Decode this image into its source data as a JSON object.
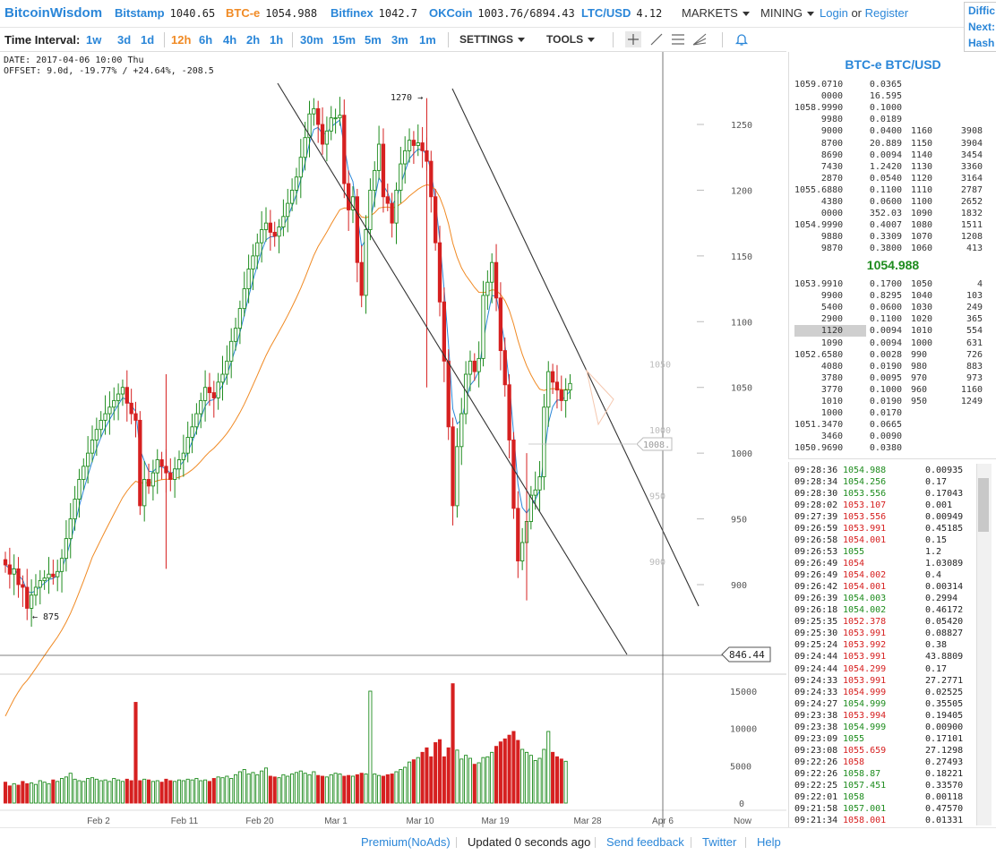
{
  "header": {
    "brand": "BitcoinWisdom",
    "exchanges": [
      {
        "name": "Bitstamp",
        "price": "1040.65",
        "active": false
      },
      {
        "name": "BTC-e",
        "price": "1054.988",
        "active": true
      },
      {
        "name": "Bitfinex",
        "price": "1042.7",
        "active": false
      },
      {
        "name": "OKCoin",
        "price": "1003.76/6894.43",
        "active": false
      },
      {
        "name": "LTC/USD",
        "price": "4.12",
        "active": false
      }
    ],
    "markets_label": "MARKETS",
    "mining_label": "MINING",
    "login_label": "Login",
    "or_label": "or",
    "register_label": "Register",
    "side_panel": [
      "Diffic",
      "Next:",
      "Hash"
    ]
  },
  "toolbar": {
    "time_interval_label": "Time Interval:",
    "intervals": [
      "1w",
      "3d",
      "1d",
      "12h",
      "6h",
      "4h",
      "2h",
      "1h",
      "30m",
      "15m",
      "5m",
      "3m",
      "1m"
    ],
    "active_interval": "12h",
    "settings_label": "SETTINGS",
    "tools_label": "TOOLS",
    "tool_icons": [
      "crosshair-icon",
      "line-icon",
      "parallel-lines-icon",
      "fan-icon",
      "alert-bell-icon"
    ]
  },
  "chart_info": {
    "date_line": "DATE: 2017-04-06 10:00 Thu",
    "offset_line": "OFFSET: 9.0d, -19.77% / +24.64%, -208.5"
  },
  "chart_data": {
    "type": "candlestick",
    "pair": "BTC-e BTC/USD",
    "interval": "12h",
    "x_ticks": [
      "Feb 2",
      "Feb 11",
      "Feb 20",
      "Mar 1",
      "Mar 10",
      "Mar 19",
      "Mar 28",
      "Apr 6",
      "Now"
    ],
    "y_ticks": [
      900,
      950,
      1000,
      1050,
      1100,
      1150,
      1200,
      1250
    ],
    "ylim": [
      828,
      1300
    ],
    "volume_ticks": [
      0,
      5000,
      10000,
      15000
    ],
    "volume_ylim": [
      0,
      16000
    ],
    "annotations": [
      {
        "text": "1270 →",
        "value": 1270
      },
      {
        "text": "← 875",
        "value": 875
      }
    ],
    "cursor_price_label": "846.44",
    "projected_label": "1008.",
    "projected_ticks": [
      900,
      950,
      1000,
      1050
    ],
    "closes": [
      915,
      908,
      912,
      900,
      898,
      882,
      892,
      898,
      903,
      905,
      908,
      906,
      910,
      920,
      935,
      950,
      965,
      980,
      990,
      1000,
      1010,
      1018,
      1025,
      1030,
      1035,
      1040,
      1045,
      1050,
      1038,
      1030,
      1025,
      960,
      980,
      975,
      985,
      995,
      990,
      985,
      980,
      988,
      995,
      1000,
      1012,
      1020,
      1030,
      1040,
      1050,
      1046,
      1042,
      1054,
      1060,
      1070,
      1085,
      1095,
      1110,
      1125,
      1140,
      1150,
      1160,
      1170,
      1175,
      1168,
      1165,
      1172,
      1180,
      1190,
      1200,
      1210,
      1225,
      1240,
      1258,
      1262,
      1250,
      1235,
      1245,
      1255,
      1255,
      1257,
      1205,
      1185,
      1195,
      1145,
      1120,
      1170,
      1200,
      1215,
      1235,
      1195,
      1190,
      1175,
      1200,
      1220,
      1230,
      1238,
      1234,
      1236,
      1230,
      1222,
      1195,
      1160,
      1115,
      1070,
      1020,
      960,
      1005,
      1030,
      1060,
      1070,
      1062,
      1072,
      1120,
      1130,
      1145,
      1118,
      1078,
      1052,
      1010,
      958,
      918,
      932,
      948,
      968,
      972,
      982,
      1035,
      1062,
      1054,
      1048,
      1040,
      1048,
      1053
    ],
    "volumes": [
      2800,
      2300,
      2600,
      2400,
      2900,
      2600,
      2700,
      2500,
      3000,
      2800,
      2600,
      3100,
      2900,
      3300,
      3500,
      4000,
      3200,
      3000,
      2900,
      3300,
      3400,
      3200,
      3000,
      3100,
      2900,
      3300,
      3100,
      2900,
      3200,
      3000,
      13500,
      3000,
      3200,
      3100,
      2900,
      3000,
      2800,
      3200,
      3000,
      2900,
      3100,
      3000,
      3200,
      3100,
      3300,
      3000,
      3100,
      2900,
      3300,
      3500,
      3400,
      3600,
      3300,
      3800,
      4200,
      4500,
      3900,
      4100,
      3800,
      4300,
      4700,
      3600,
      3500,
      3400,
      3800,
      3600,
      3900,
      4100,
      4300,
      4000,
      3800,
      4200,
      3700,
      3600,
      3500,
      3800,
      4000,
      3900,
      3600,
      3700,
      3600,
      3800,
      4000,
      3900,
      15000,
      3900,
      3700,
      3600,
      3800,
      3900,
      4200,
      4500,
      4800,
      5500,
      5800,
      6100,
      6800,
      7400,
      6200,
      8100,
      8500,
      6200,
      7400,
      16000,
      7100,
      5900,
      6400,
      6000,
      5200,
      5400,
      6100,
      6200,
      6800,
      7600,
      8200,
      8600,
      9100,
      9600,
      8400,
      7200,
      6800,
      6400,
      5700,
      6000,
      7200,
      9600,
      6800,
      6200,
      5900,
      5600
    ]
  },
  "order_book": {
    "title": "BTC-e BTC/USD",
    "asks": [
      [
        "1059.0710",
        "0.0365",
        "",
        ""
      ],
      [
        "0000",
        "16.595",
        "",
        ""
      ],
      [
        "1058.9990",
        "0.1000",
        "",
        ""
      ],
      [
        "9980",
        "0.0189",
        "",
        ""
      ],
      [
        "9000",
        "0.0400",
        "1160",
        "3908"
      ],
      [
        "8700",
        "20.889",
        "1150",
        "3904"
      ],
      [
        "8690",
        "0.0094",
        "1140",
        "3454"
      ],
      [
        "7430",
        "1.2420",
        "1130",
        "3360"
      ],
      [
        "2870",
        "0.0540",
        "1120",
        "3164"
      ],
      [
        "1055.6880",
        "0.1100",
        "1110",
        "2787"
      ],
      [
        "4380",
        "0.0600",
        "1100",
        "2652"
      ],
      [
        "0000",
        "352.03",
        "1090",
        "1832"
      ],
      [
        "1054.9990",
        "0.4007",
        "1080",
        "1511"
      ],
      [
        "9880",
        "0.3309",
        "1070",
        "1208"
      ],
      [
        "9870",
        "0.3800",
        "1060",
        "413"
      ]
    ],
    "last_price": "1054.988",
    "bids": [
      [
        "1053.9910",
        "0.1700",
        "1050",
        "4"
      ],
      [
        "9900",
        "0.8295",
        "1040",
        "103"
      ],
      [
        "5400",
        "0.0600",
        "1030",
        "249"
      ],
      [
        "2900",
        "0.1100",
        "1020",
        "365"
      ],
      [
        "1120",
        "0.0094",
        "1010",
        "554"
      ],
      [
        "1090",
        "0.0094",
        "1000",
        "631"
      ],
      [
        "1052.6580",
        "0.0028",
        "990",
        "726"
      ],
      [
        "4080",
        "0.0190",
        "980",
        "883"
      ],
      [
        "3780",
        "0.0095",
        "970",
        "973"
      ],
      [
        "3770",
        "0.1000",
        "960",
        "1160"
      ],
      [
        "1010",
        "0.0190",
        "950",
        "1249"
      ],
      [
        "1000",
        "0.0170",
        "",
        ""
      ],
      [
        "1051.3470",
        "0.0665",
        "",
        ""
      ],
      [
        "3460",
        "0.0090",
        "",
        ""
      ],
      [
        "1050.9690",
        "0.0380",
        "",
        ""
      ]
    ]
  },
  "trades": [
    [
      "09:28:36",
      "1054.988",
      "0.00935",
      "up"
    ],
    [
      "09:28:34",
      "1054.256",
      "0.17",
      "up"
    ],
    [
      "09:28:30",
      "1053.556",
      "0.17043",
      "up"
    ],
    [
      "09:28:02",
      "1053.107",
      "0.001",
      "dn"
    ],
    [
      "09:27:39",
      "1053.556",
      "0.00949",
      "dn"
    ],
    [
      "09:26:59",
      "1053.991",
      "0.45185",
      "dn"
    ],
    [
      "09:26:58",
      "1054.001",
      "0.15",
      "dn"
    ],
    [
      "09:26:53",
      "1055",
      "1.2",
      "up"
    ],
    [
      "09:26:49",
      "1054",
      "1.03089",
      "dn"
    ],
    [
      "09:26:49",
      "1054.002",
      "0.4",
      "dn"
    ],
    [
      "09:26:42",
      "1054.001",
      "0.00314",
      "dn"
    ],
    [
      "09:26:39",
      "1054.003",
      "0.2994",
      "up"
    ],
    [
      "09:26:18",
      "1054.002",
      "0.46172",
      "up"
    ],
    [
      "09:25:35",
      "1052.378",
      "0.05420",
      "dn"
    ],
    [
      "09:25:30",
      "1053.991",
      "0.08827",
      "dn"
    ],
    [
      "09:25:24",
      "1053.992",
      "0.38",
      "dn"
    ],
    [
      "09:24:44",
      "1053.991",
      "43.8809",
      "dn"
    ],
    [
      "09:24:44",
      "1054.299",
      "0.17",
      "dn"
    ],
    [
      "09:24:33",
      "1053.991",
      "27.2771",
      "dn"
    ],
    [
      "09:24:33",
      "1054.999",
      "0.02525",
      "dn"
    ],
    [
      "09:24:27",
      "1054.999",
      "0.35505",
      "up"
    ],
    [
      "09:23:38",
      "1053.994",
      "0.19405",
      "dn"
    ],
    [
      "09:23:38",
      "1054.999",
      "0.00900",
      "up"
    ],
    [
      "09:23:09",
      "1055",
      "0.17101",
      "up"
    ],
    [
      "09:23:08",
      "1055.659",
      "27.1298",
      "dn"
    ],
    [
      "09:22:26",
      "1058",
      "0.27493",
      "dn"
    ],
    [
      "09:22:26",
      "1058.87",
      "0.18221",
      "up"
    ],
    [
      "09:22:25",
      "1057.451",
      "0.33570",
      "up"
    ],
    [
      "09:22:01",
      "1058",
      "0.00118",
      "up"
    ],
    [
      "09:21:58",
      "1057.001",
      "0.47570",
      "up"
    ],
    [
      "09:21:34",
      "1058.001",
      "0.01331",
      "dn"
    ]
  ],
  "footer": {
    "premium": "Premium(NoAds)",
    "updated": "Updated 0 seconds ago",
    "feedback": "Send feedback",
    "twitter": "Twitter",
    "help": "Help"
  },
  "colors": {
    "brand": "#2a86d8",
    "accent": "#f08a24",
    "up": "#1e8c1e",
    "down": "#d62020",
    "ema_fast": "#2a86d8",
    "ema_slow": "#f08a24"
  }
}
